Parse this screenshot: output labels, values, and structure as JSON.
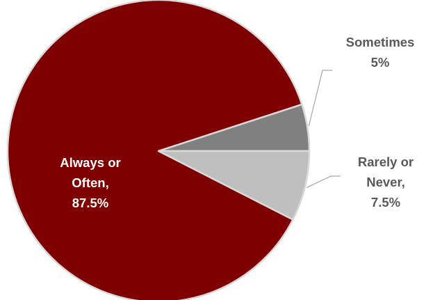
{
  "chart_data": {
    "type": "pie",
    "title": "",
    "slices": [
      {
        "label_lines": [
          "Always or",
          "Often,",
          "87.5%"
        ],
        "value": 87.5,
        "color": "#7f0000",
        "label_color": "#ffffff"
      },
      {
        "label_lines": [
          "Sometimes",
          "5%"
        ],
        "value": 5,
        "color": "#808080",
        "label_color": "#595959"
      },
      {
        "label_lines": [
          "Rarely or",
          "Never,",
          "7.5%"
        ],
        "value": 7.5,
        "color": "#bfbfbf",
        "label_color": "#595959"
      }
    ],
    "leader_line_color": "#a6a6a6",
    "slice_border_color": "#d9d9d9"
  }
}
